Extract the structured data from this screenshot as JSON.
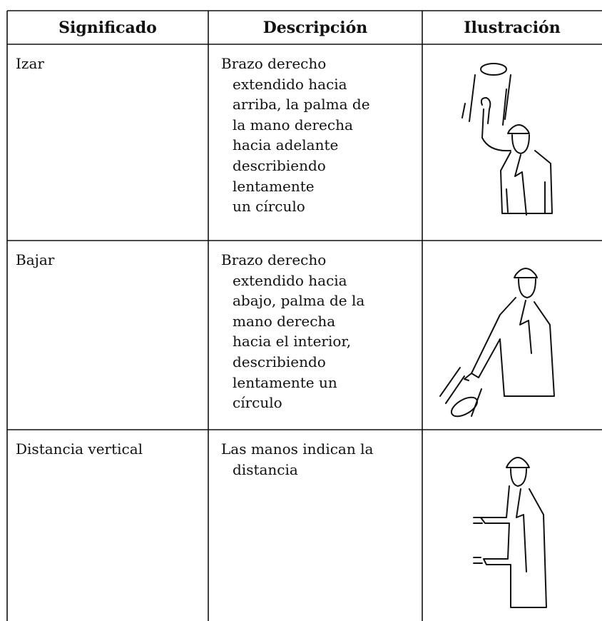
{
  "table": {
    "header": [
      "Significado",
      "Descripción",
      "Ilustración"
    ],
    "rows": [
      {
        "meaning": "Izar",
        "description": [
          "Brazo derecho",
          "extendido hacia",
          "arriba, la palma de",
          "la mano derecha",
          "hacia adelante",
          "describiendo",
          "lentamente",
          "un círculo"
        ]
      },
      {
        "meaning": "Bajar",
        "description": [
          "Brazo derecho",
          "extendido hacia",
          "abajo, palma de la",
          "mano derecha",
          "hacia el interior,",
          "describiendo",
          "lentamente un",
          "círculo"
        ]
      },
      {
        "meaning": "Distancia vertical",
        "description": [
          "Las manos indican la",
          "distancia"
        ]
      }
    ]
  }
}
